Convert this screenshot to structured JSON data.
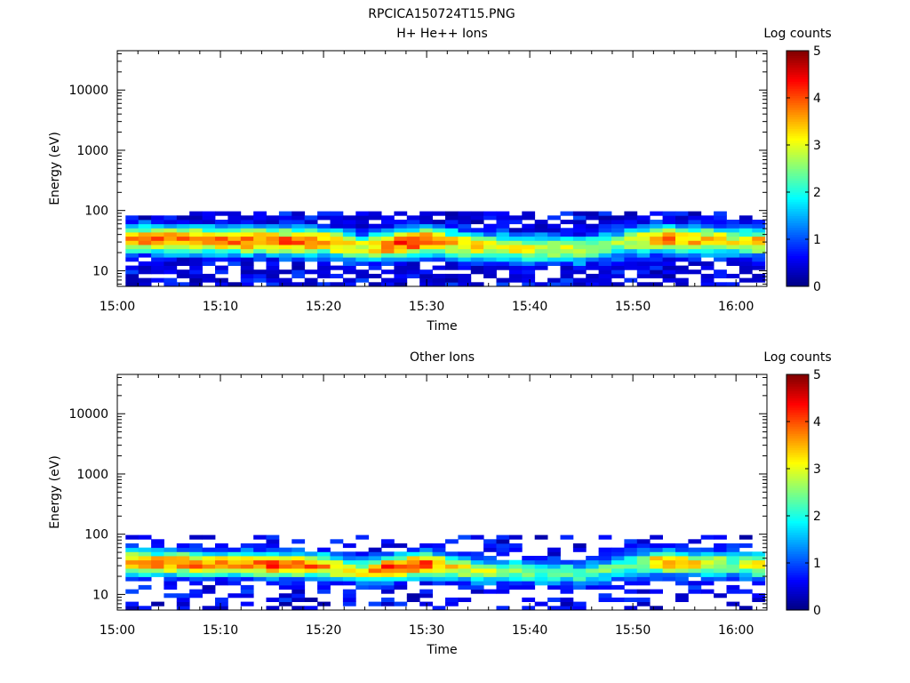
{
  "title": "RPCICA150724T15.PNG",
  "colorbar": {
    "label": "Log counts",
    "ticks": [
      "0",
      "1",
      "2",
      "3",
      "4",
      "5"
    ],
    "min": 0,
    "max": 5,
    "colormap": "jet"
  },
  "chart_data": [
    {
      "type": "heatmap",
      "title": "H+ He++ Ions",
      "xlabel": "Time",
      "ylabel": "Energy (eV)",
      "xticks": [
        "15:00",
        "15:10",
        "15:20",
        "15:30",
        "15:40",
        "15:50",
        "16:00"
      ],
      "xlim_minutes": [
        0,
        63
      ],
      "yscale": "log",
      "ylim": [
        5.5,
        45000
      ],
      "yticks": [
        {
          "value": 10,
          "label": "10"
        },
        {
          "value": 100,
          "label": "100"
        },
        {
          "value": 1000,
          "label": "1000"
        },
        {
          "value": 10000,
          "label": "10000"
        }
      ],
      "data_range_minutes": [
        0.8,
        62.8
      ],
      "energy_range_eV": [
        5.5,
        97
      ],
      "time_bins": 50,
      "energy_bins": 18,
      "peak_profile_log_counts": [
        [
          0.8,
          3.7
        ],
        [
          5,
          3.8
        ],
        [
          10,
          3.8
        ],
        [
          15,
          4.0
        ],
        [
          20,
          3.7
        ],
        [
          24,
          3.0
        ],
        [
          26,
          4.0
        ],
        [
          30,
          4.2
        ],
        [
          32,
          3.4
        ],
        [
          35,
          3.2
        ],
        [
          40,
          2.9
        ],
        [
          45,
          2.8
        ],
        [
          50,
          2.7
        ],
        [
          52,
          3.8
        ],
        [
          55,
          3.6
        ],
        [
          58,
          3.4
        ],
        [
          60,
          2.9
        ],
        [
          62.8,
          3.6
        ]
      ],
      "peak_energy_eV": [
        [
          0.8,
          34
        ],
        [
          20,
          30
        ],
        [
          24,
          24
        ],
        [
          30,
          32
        ],
        [
          35,
          25
        ],
        [
          45,
          22
        ],
        [
          52,
          34
        ],
        [
          62.8,
          30
        ]
      ]
    },
    {
      "type": "heatmap",
      "title": "Other Ions",
      "xlabel": "Time",
      "ylabel": "Energy (eV)",
      "xticks": [
        "15:00",
        "15:10",
        "15:20",
        "15:30",
        "15:40",
        "15:50",
        "16:00"
      ],
      "xlim_minutes": [
        0,
        63
      ],
      "yscale": "log",
      "ylim": [
        5.5,
        45000
      ],
      "yticks": [
        {
          "value": 10,
          "label": "10"
        },
        {
          "value": 100,
          "label": "100"
        },
        {
          "value": 1000,
          "label": "1000"
        },
        {
          "value": 10000,
          "label": "10000"
        }
      ],
      "data_range_minutes": [
        0.8,
        62.8
      ],
      "energy_range_eV": [
        5.5,
        97
      ],
      "time_bins": 50,
      "energy_bins": 18,
      "peak_profile_log_counts": [
        [
          0.8,
          3.8
        ],
        [
          5,
          3.8
        ],
        [
          10,
          3.8
        ],
        [
          15,
          4.0
        ],
        [
          20,
          3.7
        ],
        [
          24,
          3.0
        ],
        [
          26,
          4.2
        ],
        [
          30,
          4.2
        ],
        [
          32,
          3.2
        ],
        [
          35,
          2.8
        ],
        [
          40,
          2.4
        ],
        [
          45,
          2.3
        ],
        [
          50,
          2.3
        ],
        [
          52,
          3.5
        ],
        [
          55,
          3.4
        ],
        [
          58,
          3.2
        ],
        [
          60,
          2.5
        ],
        [
          62.8,
          3.4
        ]
      ],
      "peak_energy_eV": [
        [
          0.8,
          34
        ],
        [
          20,
          30
        ],
        [
          24,
          24
        ],
        [
          30,
          32
        ],
        [
          35,
          25
        ],
        [
          45,
          22
        ],
        [
          52,
          34
        ],
        [
          62.8,
          30
        ]
      ]
    }
  ]
}
